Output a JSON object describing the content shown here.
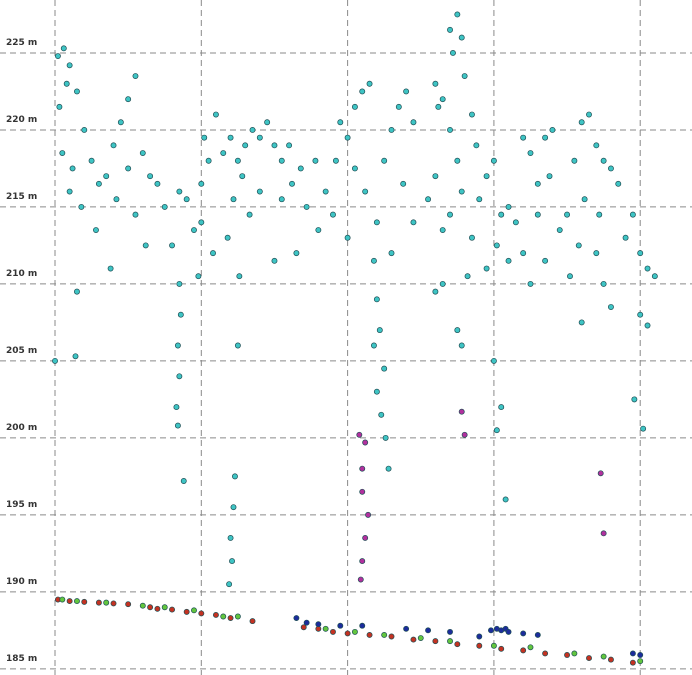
{
  "chart_data": {
    "type": "scatter",
    "xlim": [
      -0.376,
      4.354
    ],
    "xticks": [
      0,
      1,
      2,
      3,
      4
    ],
    "ylim": [
      184.6,
      228.44
    ],
    "yticks": [
      {
        "value": 185,
        "label": "185 m"
      },
      {
        "value": 190,
        "label": "190 m"
      },
      {
        "value": 195,
        "label": "195 m"
      },
      {
        "value": 200,
        "label": "200 m"
      },
      {
        "value": 205,
        "label": "205 m"
      },
      {
        "value": 210,
        "label": "210 m"
      },
      {
        "value": 215,
        "label": "215 m"
      },
      {
        "value": 220,
        "label": "220 m"
      },
      {
        "value": 225,
        "label": "225 m"
      }
    ],
    "grid": true,
    "series": [
      {
        "color": "#3ec4c4",
        "x": [
          0.02,
          0.06,
          0.1,
          0.08,
          0.15,
          0.03,
          0.2,
          0.05,
          0.12,
          0.25,
          0.3,
          0.1,
          0.18,
          0.35,
          0.4,
          0.45,
          0.5,
          0.55,
          0.42,
          0.5,
          0.6,
          0.65,
          0.7,
          0.55,
          0.28,
          0.62,
          0.38,
          0.15,
          0.14,
          0.0,
          0.75,
          0.85,
          0.9,
          0.95,
          0.8,
          0.85,
          0.86,
          0.84,
          0.85,
          0.83,
          0.84,
          0.88,
          1.0,
          1.05,
          1.02,
          1.1,
          1.0,
          1.08,
          0.98,
          1.15,
          1.2,
          1.25,
          1.3,
          1.35,
          1.4,
          1.45,
          1.5,
          1.28,
          1.22,
          1.33,
          1.4,
          1.18,
          1.26,
          1.25,
          1.23,
          1.22,
          1.2,
          1.21,
          1.19,
          1.55,
          1.6,
          1.62,
          1.68,
          1.72,
          1.55,
          1.78,
          1.85,
          1.8,
          1.65,
          1.5,
          1.9,
          1.95,
          2.0,
          1.92,
          2.05,
          2.1,
          2.15,
          2.05,
          2.12,
          2.0,
          2.2,
          2.25,
          2.3,
          2.35,
          2.4,
          2.45,
          2.38,
          2.45,
          2.3,
          2.18,
          2.2,
          2.22,
          2.18,
          2.25,
          2.2,
          2.23,
          2.26,
          2.28,
          2.55,
          2.6,
          2.65,
          2.7,
          2.75,
          2.62,
          2.6,
          2.65,
          2.7,
          2.72,
          2.7,
          2.75,
          2.78,
          2.8,
          2.85,
          2.88,
          2.78,
          2.9,
          2.95,
          3.0,
          2.85,
          2.65,
          2.6,
          2.75,
          2.78,
          2.82,
          2.95,
          3.0,
          3.05,
          3.1,
          3.15,
          3.02,
          3.1,
          3.2,
          3.2,
          3.05,
          3.02,
          3.08,
          3.25,
          3.3,
          3.35,
          3.4,
          3.38,
          3.3,
          3.45,
          3.5,
          3.55,
          3.6,
          3.65,
          3.7,
          3.75,
          3.8,
          3.72,
          3.62,
          3.58,
          3.52,
          3.7,
          3.6,
          3.75,
          3.8,
          3.85,
          3.9,
          3.95,
          4.0,
          4.05,
          4.1,
          4.0,
          4.05,
          3.96,
          4.02,
          3.25,
          3.35
        ],
        "values": [
          224.8,
          225.3,
          224.2,
          223,
          222.5,
          221.5,
          220,
          218.5,
          217.5,
          218,
          216.5,
          216,
          215,
          217,
          219,
          220.5,
          222,
          223.5,
          215.5,
          217.5,
          218.5,
          217,
          216.5,
          214.5,
          213.5,
          212.5,
          211,
          209.5,
          205.3,
          205,
          215,
          216,
          215.5,
          213.5,
          212.5,
          210,
          208,
          206,
          204,
          202,
          200.8,
          197.2,
          216.5,
          218,
          219.5,
          221,
          214,
          212,
          210.5,
          218.5,
          219.5,
          218,
          219,
          220,
          219.5,
          220.5,
          219,
          217,
          215.5,
          214.5,
          216,
          213,
          210.5,
          206,
          197.5,
          195.5,
          193.5,
          192,
          190.5,
          218,
          219,
          216.5,
          217.5,
          215,
          215.5,
          218,
          216,
          213.5,
          212,
          211.5,
          214.5,
          220.5,
          219.5,
          218,
          221.5,
          222.5,
          223,
          217.5,
          216,
          213,
          214,
          218,
          220,
          221.5,
          222.5,
          220.5,
          216.5,
          214,
          212,
          211.5,
          209,
          207,
          206,
          204.5,
          203,
          201.5,
          200,
          198,
          215.5,
          217,
          213.5,
          214.5,
          218,
          221.5,
          223,
          222,
          220,
          225,
          226.5,
          227.5,
          226,
          223.5,
          221,
          219,
          216,
          215.5,
          217,
          218,
          213,
          210,
          209.5,
          207,
          206,
          210.5,
          211,
          205,
          214.5,
          215,
          214,
          212.5,
          211.5,
          219.5,
          212,
          202,
          200.5,
          196,
          218.5,
          216.5,
          219.5,
          220,
          217,
          214.5,
          213.5,
          214.5,
          218,
          220.5,
          221,
          219,
          218,
          217.5,
          214.5,
          215.5,
          212.5,
          210.5,
          212,
          207.5,
          210,
          208.5,
          216.5,
          213,
          214.5,
          212,
          211,
          210.5,
          208,
          207.3,
          202.5,
          200.6,
          210,
          211.5
        ]
      },
      {
        "color": "#b2309e",
        "x": [
          2.08,
          2.12,
          2.1,
          2.1,
          2.14,
          2.12,
          2.1,
          2.09,
          2.78,
          2.8,
          3.73,
          3.75
        ],
        "values": [
          200.2,
          199.7,
          198,
          196.5,
          195,
          193.5,
          192,
          190.8,
          201.7,
          200.2,
          197.7,
          193.8
        ]
      },
      {
        "color": "#c43222",
        "x": [
          0.02,
          0.1,
          0.2,
          0.3,
          0.4,
          0.5,
          0.65,
          0.7,
          0.8,
          0.9,
          1.0,
          1.1,
          1.2,
          1.35,
          1.7,
          1.8,
          1.9,
          2.0,
          2.15,
          2.3,
          2.45,
          2.6,
          2.75,
          2.9,
          3.05,
          3.2,
          3.35,
          3.5,
          3.65,
          3.8,
          3.95
        ],
        "values": [
          189.5,
          189.4,
          189.35,
          189.3,
          189.25,
          189.2,
          189.0,
          188.9,
          188.85,
          188.7,
          188.6,
          188.5,
          188.3,
          188.1,
          187.7,
          187.6,
          187.4,
          187.3,
          187.2,
          187.1,
          186.9,
          186.8,
          186.6,
          186.5,
          186.3,
          186.2,
          186.0,
          185.9,
          185.7,
          185.6,
          185.4
        ]
      },
      {
        "color": "#62c63e",
        "x": [
          0.05,
          0.15,
          0.35,
          0.6,
          0.75,
          0.95,
          1.15,
          1.25,
          1.85,
          2.05,
          2.25,
          2.5,
          2.7,
          3.0,
          3.25,
          3.55,
          3.75,
          4.0
        ],
        "values": [
          189.5,
          189.4,
          189.3,
          189.1,
          189.0,
          188.8,
          188.4,
          188.4,
          187.6,
          187.4,
          187.2,
          187.0,
          186.8,
          186.5,
          186.4,
          186.0,
          185.8,
          185.5
        ]
      },
      {
        "color": "#1c2c9c",
        "x": [
          1.65,
          1.72,
          1.8,
          1.95,
          2.1,
          2.4,
          2.55,
          2.7,
          2.9,
          2.98,
          3.02,
          3.05,
          3.08,
          3.1,
          3.2,
          3.3,
          3.95,
          4.0
        ],
        "values": [
          188.3,
          188.0,
          187.9,
          187.8,
          187.8,
          187.6,
          187.5,
          187.4,
          187.1,
          187.5,
          187.6,
          187.5,
          187.6,
          187.4,
          187.3,
          187.2,
          186.0,
          185.9
        ]
      }
    ]
  }
}
